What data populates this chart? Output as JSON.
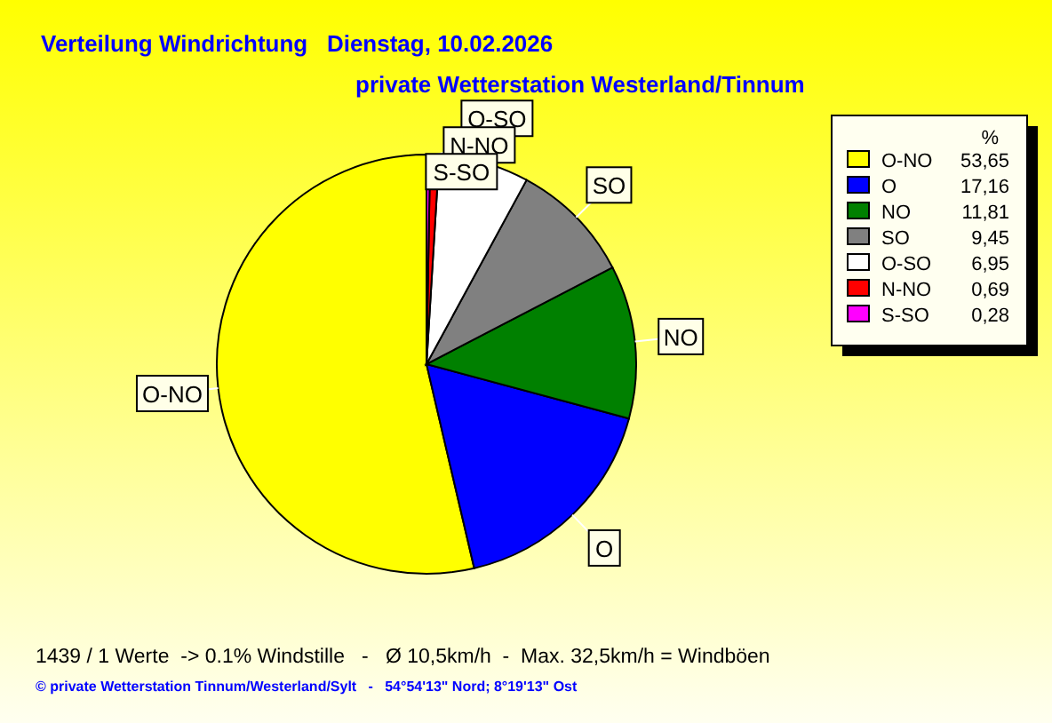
{
  "chart_data": {
    "type": "pie",
    "title": "Verteilung Windrichtung   Dienstag, 10.02.2026",
    "subtitle": "private Wetterstation Westerland/Tinnum",
    "categories": [
      "O-NO",
      "O",
      "NO",
      "SO",
      "O-SO",
      "N-NO",
      "S-SO"
    ],
    "values": [
      53.65,
      17.16,
      11.81,
      9.45,
      6.95,
      0.69,
      0.28
    ],
    "value_labels": [
      "53,65",
      "17,16",
      "11,81",
      "9,45",
      "6,95",
      "0,69",
      "0,28"
    ],
    "colors": [
      "#ffff00",
      "#0000ff",
      "#008000",
      "#808080",
      "#ffffff",
      "#ff0000",
      "#ff00ff"
    ],
    "legend": "top right",
    "legend_title": "%",
    "annotations": [
      "1439 / 1 Werte  -> 0.1% Windstille   -   Ø 10,5km/h  -  Max. 32,5km/h = Windböen",
      "© private Wetterstation Tinnum/Westerland/Sylt   -   54°54'13\" Nord; 8°19'13\" Ost"
    ]
  }
}
